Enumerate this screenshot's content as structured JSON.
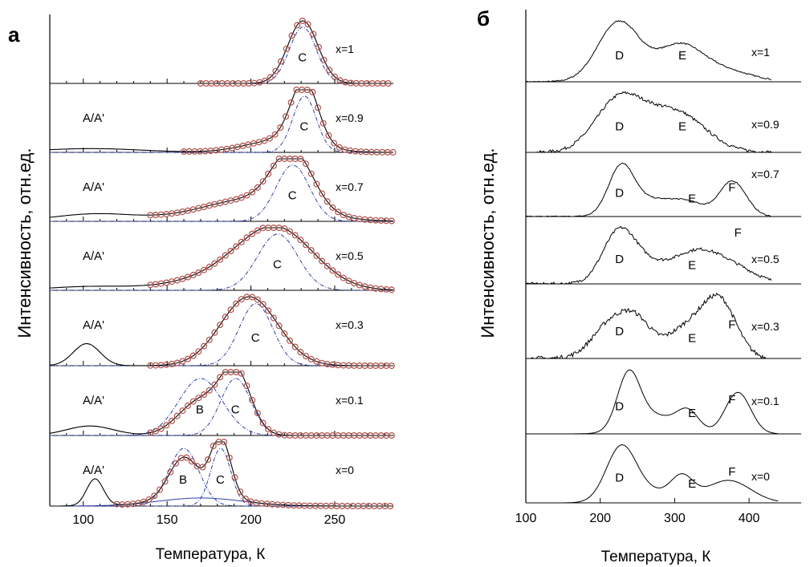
{
  "chart_data": [
    {
      "type": "line",
      "panel_label": "а",
      "xlabel": "Температура, К",
      "ylabel": "Интенсивность, отн.ед.",
      "xlim": [
        80,
        285
      ],
      "xticks": [
        100,
        150,
        200,
        250
      ],
      "tick_labels": [
        "100",
        "150",
        "200",
        "250"
      ],
      "colors": {
        "fit": "#000000",
        "markers": "#b0504a",
        "components": "#2e3fa8"
      },
      "subplots": [
        {
          "label": "x=1",
          "peaks": [
            "C"
          ],
          "components": [
            {
              "name": "C",
              "center": 231,
              "width": 8
            }
          ],
          "total": [
            {
              "center": 231,
              "width": 9,
              "amp": 1.0
            }
          ],
          "points_from": 170
        },
        {
          "label": "x=0.9",
          "peaks": [
            "A/A'",
            "C"
          ],
          "components": [
            {
              "name": "C",
              "center": 232,
              "width": 7
            }
          ],
          "total": [
            {
              "center": 232,
              "width": 8,
              "amp": 1.0
            },
            {
              "center": 218,
              "width": 20,
              "amp": 0.2
            }
          ],
          "low": {
            "center": 105,
            "width": 30,
            "amp": 0.06
          },
          "points_from": 160
        },
        {
          "label": "x=0.7",
          "peaks": [
            "A/A'",
            "C"
          ],
          "components": [
            {
              "name": "C",
              "center": 225,
              "width": 10
            }
          ],
          "total": [
            {
              "center": 225,
              "width": 12,
              "amp": 0.9
            },
            {
              "center": 200,
              "width": 30,
              "amp": 0.35
            }
          ],
          "low": {
            "center": 108,
            "width": 25,
            "amp": 0.12
          },
          "points_from": 140
        },
        {
          "label": "x=0.5",
          "peaks": [
            "A/A'",
            "C"
          ],
          "components": [
            {
              "name": "C",
              "center": 216,
              "width": 12
            }
          ],
          "total": [
            {
              "center": 216,
              "width": 22,
              "amp": 0.85
            },
            {
              "center": 190,
              "width": 30,
              "amp": 0.25
            }
          ],
          "low": {
            "center": 105,
            "width": 25,
            "amp": 0.06
          },
          "points_from": 140
        },
        {
          "label": "x=0.3",
          "peaks": [
            "A/A'",
            "C"
          ],
          "components": [
            {
              "name": "C",
              "center": 203,
              "width": 10
            }
          ],
          "total": [
            {
              "center": 199,
              "width": 17,
              "amp": 1.0
            }
          ],
          "low": {
            "center": 102,
            "width": 8,
            "amp": 0.32
          },
          "points_from": 140
        },
        {
          "label": "x=0.1",
          "peaks": [
            "A/A'",
            "B",
            "C"
          ],
          "components": [
            {
              "name": "B",
              "center": 170,
              "width": 13
            },
            {
              "name": "C",
              "center": 191,
              "width": 9
            }
          ],
          "total": [
            {
              "center": 191,
              "width": 9,
              "amp": 0.95
            },
            {
              "center": 170,
              "width": 13,
              "amp": 0.55
            }
          ],
          "low": {
            "center": 104,
            "width": 14,
            "amp": 0.15
          },
          "points_from": 140
        },
        {
          "label": "x=0",
          "peaks": [
            "A/A'",
            "B",
            "C"
          ],
          "components": [
            {
              "name": "B",
              "center": 160,
              "width": 9
            },
            {
              "name": "C",
              "center": 182,
              "width": 6
            },
            {
              "name": "bg",
              "center": 170,
              "width": 25
            }
          ],
          "total": [
            {
              "center": 182,
              "width": 6,
              "amp": 0.95
            },
            {
              "center": 160,
              "width": 9,
              "amp": 0.65
            },
            {
              "center": 170,
              "width": 25,
              "amp": 0.12
            }
          ],
          "low": {
            "center": 107,
            "width": 5,
            "amp": 0.42
          },
          "points_from": 120
        }
      ]
    },
    {
      "type": "line",
      "panel_label": "б",
      "xlabel": "Температура, К",
      "ylabel": "Интенсивность, отн.ед.",
      "xlim": [
        100,
        470
      ],
      "xticks": [
        100,
        200,
        300,
        400
      ],
      "tick_labels": [
        "100",
        "200",
        "300",
        "400"
      ],
      "colors": {
        "line": "#000000"
      },
      "subplots": [
        {
          "label": "x=1",
          "peaks": [
            "D",
            "E"
          ],
          "range": [
            100,
            430
          ],
          "noise": 0.02,
          "total": [
            {
              "center": 225,
              "width": 28,
              "amp": 1.0
            },
            {
              "center": 305,
              "width": 30,
              "amp": 0.55
            },
            {
              "center": 360,
              "width": 40,
              "amp": 0.2
            }
          ]
        },
        {
          "label": "x=0.9",
          "peaks": [
            "D",
            "E"
          ],
          "range": [
            115,
            430
          ],
          "noise": 0.05,
          "total": [
            {
              "center": 225,
              "width": 32,
              "amp": 0.95
            },
            {
              "center": 300,
              "width": 40,
              "amp": 0.75
            }
          ]
        },
        {
          "label": "x=0.7",
          "peaks": [
            "D",
            "E",
            "F"
          ],
          "range": [
            100,
            430
          ],
          "noise": 0.02,
          "total": [
            {
              "center": 228,
              "width": 17,
              "amp": 1.0
            },
            {
              "center": 270,
              "width": 30,
              "amp": 0.35
            },
            {
              "center": 320,
              "width": 22,
              "amp": 0.25
            },
            {
              "center": 378,
              "width": 18,
              "amp": 0.75
            }
          ]
        },
        {
          "label": "x=0.5",
          "peaks": [
            "D",
            "E",
            "F"
          ],
          "range": [
            100,
            430
          ],
          "noise": 0.05,
          "total": [
            {
              "center": 225,
              "width": 22,
              "amp": 1.0
            },
            {
              "center": 265,
              "width": 30,
              "amp": 0.35
            },
            {
              "center": 330,
              "width": 30,
              "amp": 0.6
            },
            {
              "center": 380,
              "width": 30,
              "amp": 0.3
            }
          ]
        },
        {
          "label": "x=0.3",
          "peaks": [
            "D",
            "E",
            "F"
          ],
          "range": [
            100,
            425
          ],
          "noise": 0.07,
          "total": [
            {
              "center": 215,
              "width": 25,
              "amp": 0.6
            },
            {
              "center": 250,
              "width": 20,
              "amp": 0.5
            },
            {
              "center": 320,
              "width": 30,
              "amp": 0.55
            },
            {
              "center": 362,
              "width": 22,
              "amp": 0.85
            }
          ]
        },
        {
          "label": "x=0.1",
          "peaks": [
            "D",
            "E",
            "F"
          ],
          "range": [
            100,
            440
          ],
          "noise": 0.0,
          "total": [
            {
              "center": 238,
              "width": 15,
              "amp": 1.0
            },
            {
              "center": 270,
              "width": 30,
              "amp": 0.35
            },
            {
              "center": 318,
              "width": 15,
              "amp": 0.38
            },
            {
              "center": 385,
              "width": 17,
              "amp": 0.78
            }
          ]
        },
        {
          "label": "x=0",
          "peaks": [
            "D",
            "E",
            "F"
          ],
          "range": [
            100,
            440
          ],
          "noise": 0.0,
          "total": [
            {
              "center": 228,
              "width": 20,
              "amp": 1.0
            },
            {
              "center": 268,
              "width": 30,
              "amp": 0.2
            },
            {
              "center": 310,
              "width": 15,
              "amp": 0.42
            },
            {
              "center": 372,
              "width": 30,
              "amp": 0.42
            }
          ]
        }
      ]
    }
  ]
}
